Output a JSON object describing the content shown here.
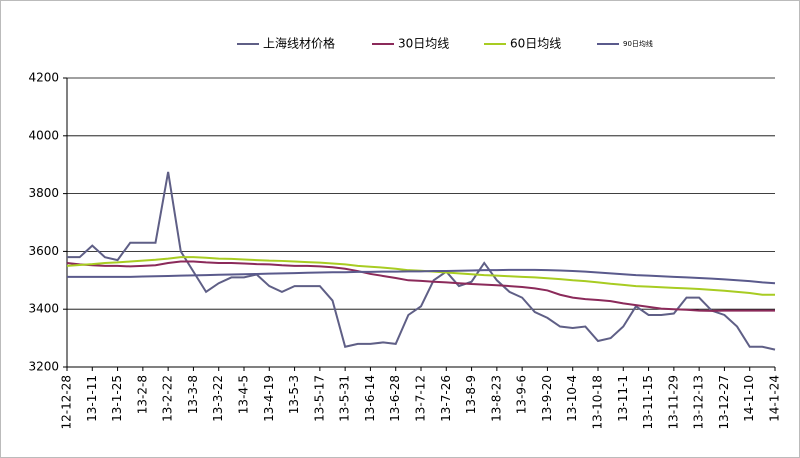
{
  "chart_data": {
    "type": "line",
    "categories": [
      "12-12-28",
      null,
      "13-1-11",
      null,
      "13-1-25",
      null,
      "13-2-8",
      null,
      "13-2-22",
      null,
      "13-3-8",
      null,
      "13-3-22",
      null,
      "13-4-5",
      null,
      "13-4-19",
      null,
      "13-5-3",
      null,
      "13-5-17",
      null,
      "13-5-31",
      null,
      "13-6-14",
      null,
      "13-6-28",
      null,
      "13-7-12",
      null,
      "13-7-26",
      null,
      "13-8-9",
      null,
      "13-8-23",
      null,
      "13-9-6",
      null,
      "13-9-20",
      null,
      "13-10-4",
      null,
      "13-10-18",
      null,
      "13-11-1",
      null,
      "13-11-15",
      null,
      "13-11-29",
      null,
      "13-12-13",
      null,
      "13-12-27",
      null,
      "14-1-10",
      null,
      "14-1-24"
    ],
    "series": [
      {
        "name": "上海线材价格",
        "color": "#5f5f86",
        "values": [
          3580,
          3580,
          3620,
          3580,
          3570,
          3630,
          3630,
          3630,
          3875,
          3600,
          3530,
          3460,
          3490,
          3510,
          3510,
          3520,
          3480,
          3460,
          3480,
          3480,
          3480,
          3430,
          3270,
          3280,
          3280,
          3285,
          3280,
          3380,
          3410,
          3500,
          3530,
          3480,
          3495,
          3560,
          3500,
          3460,
          3440,
          3390,
          3370,
          3340,
          3335,
          3340,
          3290,
          3300,
          3340,
          3410,
          3380,
          3380,
          3385,
          3440,
          3440,
          3395,
          3380,
          3340,
          3270,
          3270,
          3260
        ]
      },
      {
        "name": "30日均线",
        "color": "#8b2a5a",
        "values": [
          3560,
          3555,
          3552,
          3550,
          3550,
          3548,
          3550,
          3552,
          3560,
          3565,
          3565,
          3562,
          3560,
          3560,
          3558,
          3556,
          3555,
          3552,
          3550,
          3550,
          3548,
          3545,
          3540,
          3532,
          3522,
          3515,
          3508,
          3500,
          3498,
          3495,
          3493,
          3490,
          3487,
          3485,
          3483,
          3480,
          3477,
          3472,
          3465,
          3450,
          3440,
          3435,
          3432,
          3428,
          3420,
          3414,
          3408,
          3402,
          3400,
          3398,
          3395,
          3394,
          3395,
          3395,
          3395,
          3395,
          3395
        ]
      },
      {
        "name": "60日均线",
        "color": "#a8cc22",
        "values": [
          3550,
          3553,
          3556,
          3560,
          3562,
          3565,
          3568,
          3571,
          3575,
          3580,
          3580,
          3578,
          3575,
          3574,
          3572,
          3570,
          3568,
          3567,
          3565,
          3563,
          3561,
          3558,
          3555,
          3550,
          3547,
          3544,
          3540,
          3535,
          3533,
          3530,
          3527,
          3524,
          3521,
          3518,
          3516,
          3514,
          3512,
          3510,
          3507,
          3504,
          3500,
          3497,
          3493,
          3488,
          3484,
          3480,
          3478,
          3476,
          3474,
          3472,
          3470,
          3467,
          3464,
          3460,
          3456,
          3450,
          3450
        ]
      },
      {
        "name": "90日均线",
        "color": "#5a5a8c",
        "values": [
          3512,
          3512,
          3512,
          3512,
          3512,
          3512,
          3513,
          3514,
          3515,
          3516,
          3517,
          3518,
          3519,
          3520,
          3521,
          3522,
          3523,
          3524,
          3525,
          3526,
          3527,
          3528,
          3528,
          3529,
          3529,
          3530,
          3530,
          3531,
          3531,
          3532,
          3532,
          3533,
          3534,
          3535,
          3535,
          3536,
          3536,
          3536,
          3535,
          3534,
          3532,
          3530,
          3527,
          3524,
          3521,
          3518,
          3516,
          3514,
          3512,
          3510,
          3508,
          3506,
          3503,
          3500,
          3497,
          3493,
          3490
        ]
      }
    ],
    "ylim": [
      3200,
      4200
    ],
    "yticks": [
      3200,
      3400,
      3600,
      3800,
      4000,
      4200
    ],
    "grid": true,
    "legend": "top"
  }
}
